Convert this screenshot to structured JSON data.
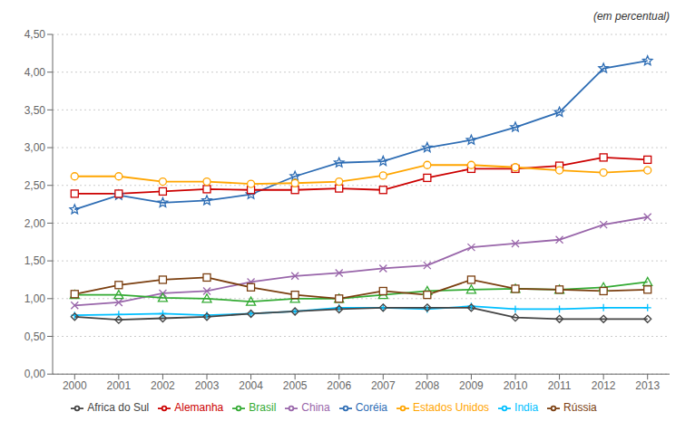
{
  "chart_data": {
    "type": "line",
    "annotation": "(em percentual)",
    "x": [
      2000,
      2001,
      2002,
      2003,
      2004,
      2005,
      2006,
      2007,
      2008,
      2009,
      2010,
      2011,
      2012,
      2013
    ],
    "series": [
      {
        "name": "Coréia",
        "color": "#2E6DB4",
        "marker": "star",
        "values": [
          2.18,
          2.37,
          2.27,
          2.3,
          2.38,
          2.62,
          2.8,
          2.82,
          3.0,
          3.1,
          3.27,
          3.47,
          4.05,
          4.15
        ]
      },
      {
        "name": "Alemanha",
        "color": "#CC0000",
        "marker": "square",
        "values": [
          2.39,
          2.39,
          2.42,
          2.45,
          2.44,
          2.44,
          2.46,
          2.44,
          2.6,
          2.72,
          2.72,
          2.76,
          2.87,
          2.84
        ]
      },
      {
        "name": "Estados Unidos",
        "color": "#FFA500",
        "marker": "circle",
        "values": [
          2.62,
          2.62,
          2.55,
          2.55,
          2.52,
          2.53,
          2.55,
          2.63,
          2.77,
          2.77,
          2.74,
          2.7,
          2.67,
          2.7
        ]
      },
      {
        "name": "China",
        "color": "#9966AA",
        "marker": "x",
        "values": [
          0.91,
          0.95,
          1.07,
          1.1,
          1.22,
          1.3,
          1.34,
          1.4,
          1.44,
          1.68,
          1.73,
          1.78,
          1.98,
          2.08
        ]
      },
      {
        "name": "Brasil",
        "color": "#33AA33",
        "marker": "triangle",
        "values": [
          1.05,
          1.05,
          1.01,
          1.0,
          0.96,
          1.0,
          1.0,
          1.05,
          1.1,
          1.12,
          1.13,
          1.12,
          1.15,
          1.22
        ]
      },
      {
        "name": "Rússia",
        "color": "#7B3F10",
        "marker": "square",
        "values": [
          1.06,
          1.18,
          1.25,
          1.28,
          1.15,
          1.05,
          1.0,
          1.1,
          1.05,
          1.25,
          1.13,
          1.12,
          1.1,
          1.12
        ]
      },
      {
        "name": "India",
        "color": "#00BFFF",
        "marker": "plus",
        "values": [
          0.78,
          0.79,
          0.8,
          0.78,
          0.8,
          0.83,
          0.88,
          0.88,
          0.86,
          0.9,
          0.86,
          0.86,
          0.88,
          0.88
        ]
      },
      {
        "name": "Africa do Sul",
        "color": "#444444",
        "marker": "diamond",
        "values": [
          0.76,
          0.72,
          0.74,
          0.76,
          0.8,
          0.83,
          0.86,
          0.88,
          0.88,
          0.88,
          0.75,
          0.73,
          0.73,
          0.73
        ]
      }
    ],
    "xlim": [
      1999.5,
      2013.5
    ],
    "xticks": [
      2000,
      2001,
      2002,
      2003,
      2004,
      2005,
      2006,
      2007,
      2008,
      2009,
      2010,
      2011,
      2012,
      2013
    ],
    "ylim": [
      0.0,
      4.5
    ],
    "yticks": [
      {
        "value": 0.0,
        "label": "0,00"
      },
      {
        "value": 0.5,
        "label": "0,50"
      },
      {
        "value": 1.0,
        "label": "1,00"
      },
      {
        "value": 1.5,
        "label": "1,50"
      },
      {
        "value": 2.0,
        "label": "2,00"
      },
      {
        "value": 2.5,
        "label": "2,50"
      },
      {
        "value": 3.0,
        "label": "3,00"
      },
      {
        "value": 3.5,
        "label": "3,50"
      },
      {
        "value": 4.0,
        "label": "4,00"
      },
      {
        "value": 4.5,
        "label": "4,50"
      }
    ],
    "grid": true,
    "legend": "bottom"
  }
}
